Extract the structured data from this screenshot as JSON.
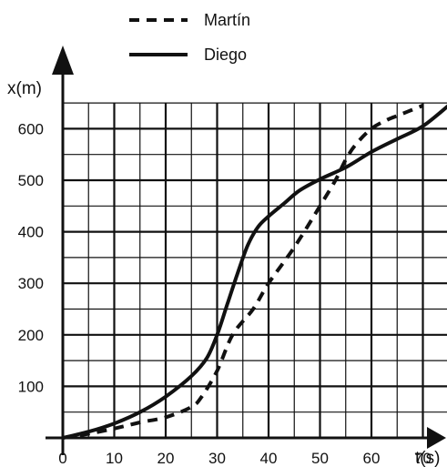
{
  "chart_data": {
    "type": "line",
    "xlabel": "t(s)",
    "ylabel": "x(m)",
    "xlim": [
      0,
      75
    ],
    "ylim": [
      0,
      650
    ],
    "x_ticks": [
      0,
      10,
      20,
      30,
      40,
      50,
      60,
      70
    ],
    "y_ticks": [
      100,
      200,
      300,
      400,
      500,
      600
    ],
    "grid": true,
    "legend_position": "top-center",
    "series": [
      {
        "name": "Martín",
        "style": "dashed",
        "color": "#111111",
        "x": [
          0,
          5,
          10,
          15,
          20,
          25,
          27,
          30,
          33,
          37,
          40,
          45,
          50,
          53,
          55,
          57,
          60,
          63,
          65,
          67,
          70
        ],
        "y": [
          0,
          8,
          18,
          30,
          40,
          60,
          80,
          130,
          200,
          250,
          300,
          370,
          450,
          500,
          540,
          570,
          600,
          617,
          625,
          633,
          645
        ]
      },
      {
        "name": "Diego",
        "style": "solid",
        "color": "#111111",
        "x": [
          0,
          5,
          10,
          15,
          20,
          25,
          28,
          30,
          32,
          34,
          36,
          38,
          40,
          43,
          46,
          50,
          55,
          60,
          65,
          70,
          75
        ],
        "y": [
          0,
          12,
          28,
          50,
          80,
          120,
          155,
          200,
          260,
          320,
          375,
          410,
          430,
          455,
          480,
          502,
          525,
          555,
          580,
          605,
          645
        ]
      }
    ]
  }
}
